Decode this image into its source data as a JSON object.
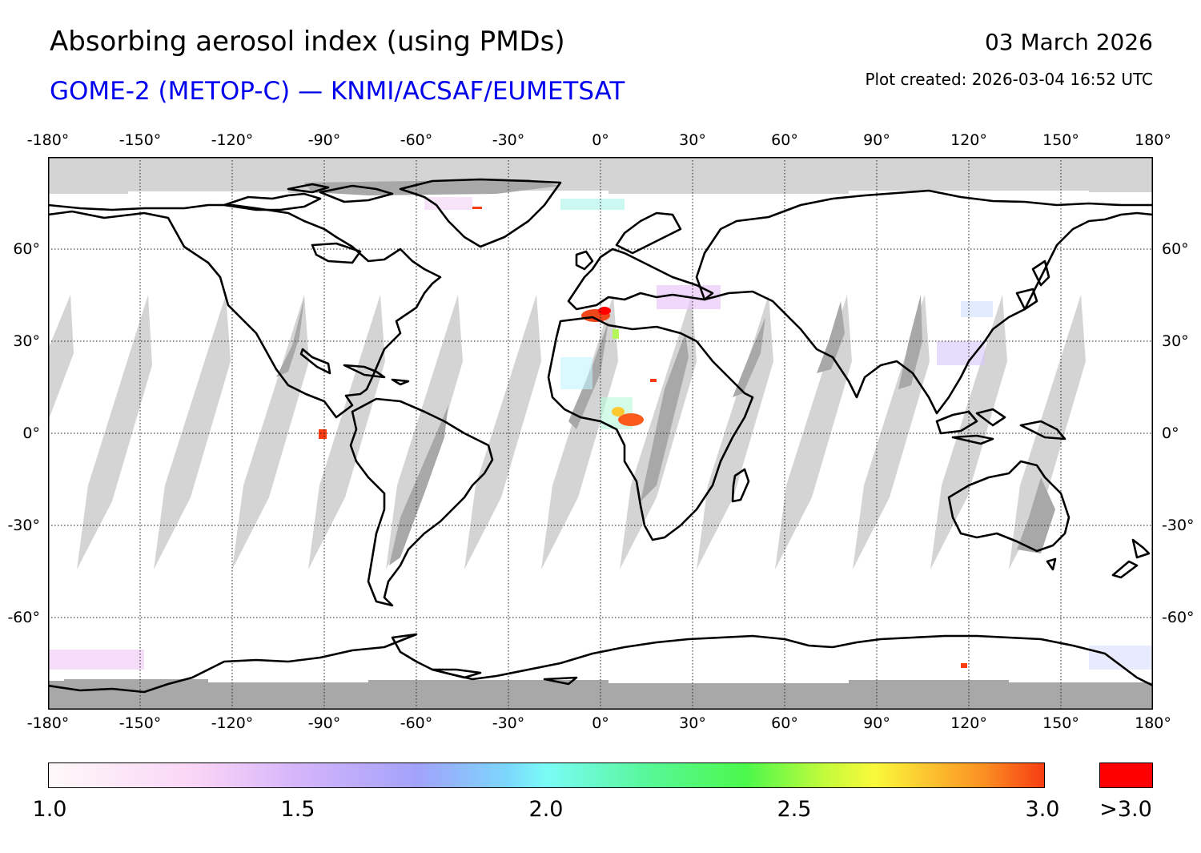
{
  "header": {
    "title": "Absorbing aerosol index (using PMDs)",
    "subtitle": "GOME-2 (METOP-C) — KNMI/ACSAF/EUMETSAT",
    "date": "03 March 2026",
    "created": "Plot created: 2026-03-04 16:52 UTC"
  },
  "map": {
    "lon_ticks": [
      "-180°",
      "-150°",
      "-120°",
      "-90°",
      "-60°",
      "-30°",
      "0°",
      "30°",
      "60°",
      "90°",
      "120°",
      "150°",
      "180°"
    ],
    "lat_ticks": [
      "60°",
      "30°",
      "0°",
      "-30°",
      "-60°"
    ],
    "colors": {
      "ocean_land": "#ffffff",
      "missing_data": "#d3d3d3",
      "night_polar": "#a9a9a9",
      "coast": "#000000",
      "gridline": "#222222"
    }
  },
  "colorbar": {
    "labels": [
      "1.0",
      "1.5",
      "2.0",
      "2.5",
      "3.0"
    ],
    "over_label": ">3.0",
    "over_color": "#ff0000"
  }
}
